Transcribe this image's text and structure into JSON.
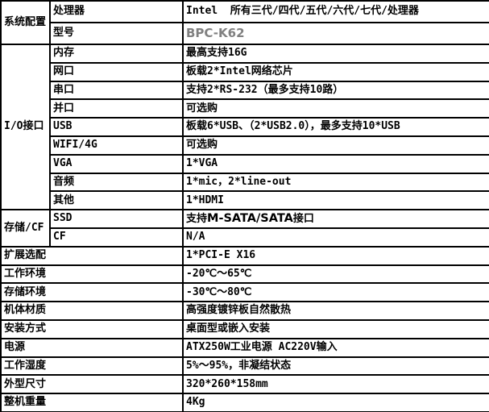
{
  "colors": {
    "grid": "#000000",
    "text": "#000000",
    "muted_text": "#808080",
    "background": "#ffffff"
  },
  "spec_table": {
    "sections": [
      {
        "category": "系统配置",
        "rows": [
          {
            "label": "处理器",
            "value": "Intel  所有三代/四代/五代/六代/七代/处理器",
            "muted": false
          },
          {
            "label": "型号",
            "value": "BPC-K62",
            "muted": true
          }
        ]
      },
      {
        "category": "I/O接口",
        "rows": [
          {
            "label": "内存",
            "value": "最高支持16G",
            "muted": false
          },
          {
            "label": "网口",
            "value": "板载2*Intel网络芯片",
            "muted": false
          },
          {
            "label": "串口",
            "value": "支持2*RS-232（最多支持10路）",
            "muted": false
          },
          {
            "label": "并口",
            "value": "可选购",
            "muted": false
          },
          {
            "label": "USB",
            "value": "板载6*USB、（2*USB2.0），最多支持10*USB",
            "muted": false
          },
          {
            "label": "WIFI/4G",
            "value": "可选购",
            "muted": false
          },
          {
            "label": "VGA",
            "value": "1*VGA",
            "muted": false
          },
          {
            "label": "音频",
            "value": "1*mic，2*line-out",
            "muted": false
          },
          {
            "label": "其他",
            "value": "1*HDMI",
            "muted": false
          }
        ]
      },
      {
        "category": "存储/CF",
        "rows": [
          {
            "label": "SSD",
            "value": "支持M-SATA/SATA接口",
            "value_parts": [
              "支持",
              "M-SATA/SATA",
              "接口"
            ],
            "muted": true
          },
          {
            "label": "CF",
            "value": "N/A",
            "muted": true
          }
        ]
      }
    ],
    "full_rows": [
      {
        "label": "扩展选配",
        "value": "1*PCI-E X16",
        "muted": false
      },
      {
        "label": "工作环境",
        "value": "-20℃～65℃",
        "muted": false
      },
      {
        "label": "存储环境",
        "value": "-30℃～80℃",
        "muted": false
      },
      {
        "label": "机体材质",
        "value": "高强度镀锌板自然散热",
        "muted": false
      },
      {
        "label": "安装方式",
        "value": "桌面型或嵌入安装",
        "muted": false
      },
      {
        "label": "电源",
        "value": "ATX250W工业电源 AC220V输入",
        "muted": true
      },
      {
        "label": "工作湿度",
        "value": "5%～95%，非凝结状态",
        "muted": false
      },
      {
        "label": "外型尺寸",
        "value": "320*260*158mm",
        "muted": false
      },
      {
        "label": "整机重量",
        "value": "4Kg",
        "muted": false
      }
    ]
  }
}
